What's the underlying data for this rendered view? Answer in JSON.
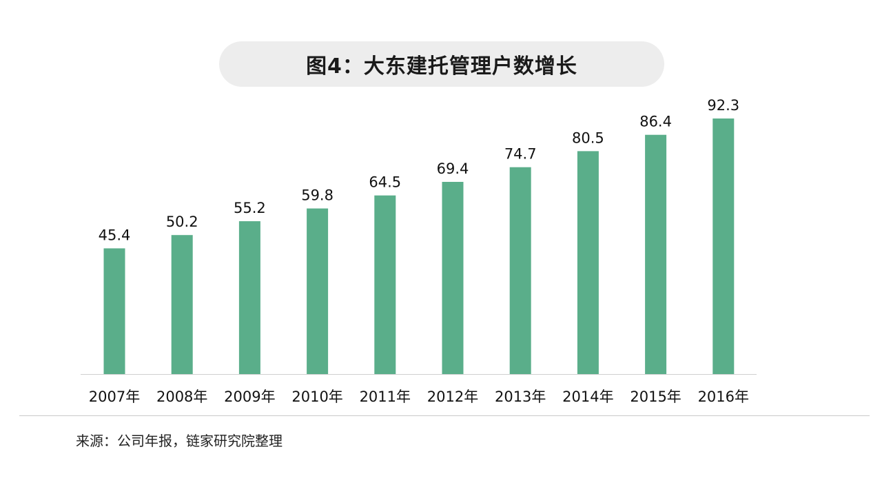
{
  "title": "图4：大东建托管理户数增长",
  "source": "来源：公司年报，链家研究院整理",
  "colors": {
    "bar": "#5aae8a",
    "axis": "#d0d0d0",
    "text": "#111111",
    "title_bg": "#ededed"
  },
  "chart_data": {
    "type": "bar",
    "title": "图4：大东建托管理户数增长",
    "categories": [
      "2007年",
      "2008年",
      "2009年",
      "2010年",
      "2011年",
      "2012年",
      "2013年",
      "2014年",
      "2015年",
      "2016年"
    ],
    "values": [
      45.4,
      50.2,
      55.2,
      59.8,
      64.5,
      69.4,
      74.7,
      80.5,
      86.4,
      92.3
    ],
    "data_labels": [
      "45.4",
      "50.2",
      "55.2",
      "59.8",
      "64.5",
      "69.4",
      "74.7",
      "80.5",
      "86.4",
      "92.3"
    ],
    "ylim": [
      0,
      92.3
    ],
    "grid": false,
    "legend": "none"
  }
}
